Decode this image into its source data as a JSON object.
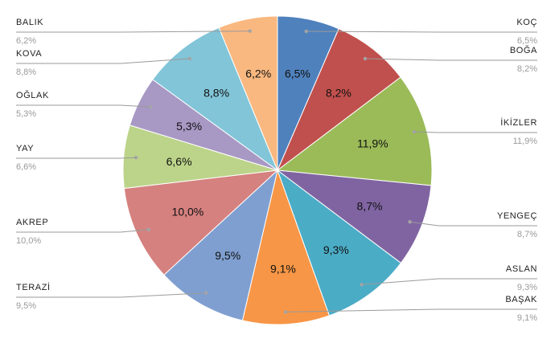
{
  "chart_data": {
    "type": "pie",
    "title": "",
    "labels": [
      "KOÇ",
      "BOĞA",
      "İKİZLER",
      "YENGEÇ",
      "ASLAN",
      "BAŞAK",
      "TERAZİ",
      "AKREP",
      "YAY",
      "OĞLAK",
      "KOVA",
      "BALIK"
    ],
    "values": [
      6.5,
      8.2,
      11.9,
      8.7,
      9.3,
      9.1,
      9.5,
      10.0,
      6.6,
      5.3,
      8.8,
      6.2
    ],
    "value_labels": [
      "6,5%",
      "8,2%",
      "11,9%",
      "8,7%",
      "9,3%",
      "9,1%",
      "9,5%",
      "10,0%",
      "6,6%",
      "5,3%",
      "8,8%",
      "6,2%"
    ],
    "colors": [
      "#4f81bd",
      "#c0504d",
      "#9bbb59",
      "#8064a2",
      "#4bacc6",
      "#f79646",
      "#7f9fd0",
      "#d5817f",
      "#bcd48a",
      "#a898c4",
      "#82c5d8",
      "#f9b880"
    ],
    "start_angle": "12 o'clock",
    "direction": "clockwise",
    "legend": "none"
  }
}
